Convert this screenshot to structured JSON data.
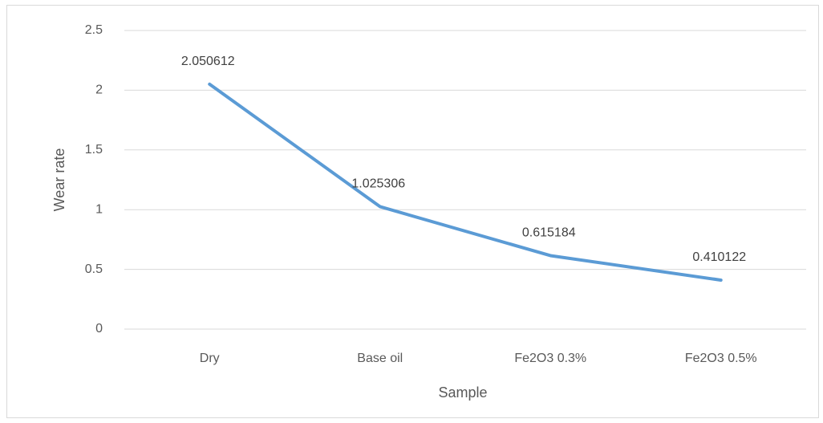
{
  "chart_data": {
    "type": "line",
    "x_label": "Sample",
    "y_label": "Wear rate",
    "categories": [
      "Dry",
      "Base oil",
      "Fe2O3 0.3%",
      "Fe2O3 0.5%"
    ],
    "series": [
      {
        "name": "Wear rate",
        "color": "#5b9bd5",
        "values": [
          2.050612,
          1.025306,
          0.615184,
          0.410122
        ]
      }
    ],
    "ylim": [
      0,
      2.5
    ],
    "yticks": [
      0,
      0.5,
      1,
      1.5,
      2,
      2.5
    ],
    "grid": true,
    "data_labels": true
  }
}
